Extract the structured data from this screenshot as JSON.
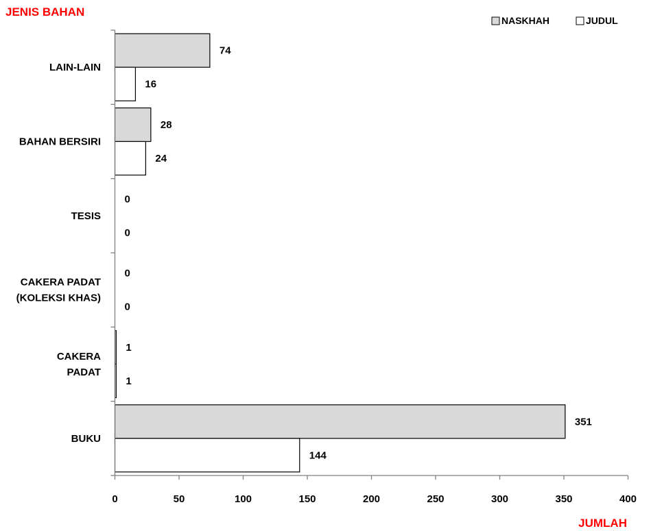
{
  "chart_data": {
    "type": "bar",
    "orientation": "horizontal",
    "ylabel": "JENIS BAHAN",
    "xlabel": "JUMLAH",
    "categories": [
      [
        "BUKU"
      ],
      [
        "CAKERA",
        "PADAT"
      ],
      [
        "CAKERA PADAT",
        "(KOLEKSI KHAS)"
      ],
      [
        "TESIS"
      ],
      [
        "BAHAN BERSIRI"
      ],
      [
        "LAIN-LAIN"
      ]
    ],
    "series": [
      {
        "name": "NASKHAH",
        "values": [
          351,
          1,
          0,
          0,
          28,
          74
        ]
      },
      {
        "name": "JUDUL",
        "values": [
          144,
          1,
          0,
          0,
          24,
          16
        ]
      }
    ],
    "xlim": [
      0,
      400
    ],
    "xticks": [
      0,
      50,
      100,
      150,
      200,
      250,
      300,
      350,
      400
    ],
    "grid": false,
    "legend_position": "top-right",
    "colors": {
      "NASKHAH": "#d9d9d9",
      "JUDUL": "#ffffff",
      "axis_title": "#ff0000",
      "axis": "#808080",
      "bar_stroke": "#000000"
    }
  }
}
